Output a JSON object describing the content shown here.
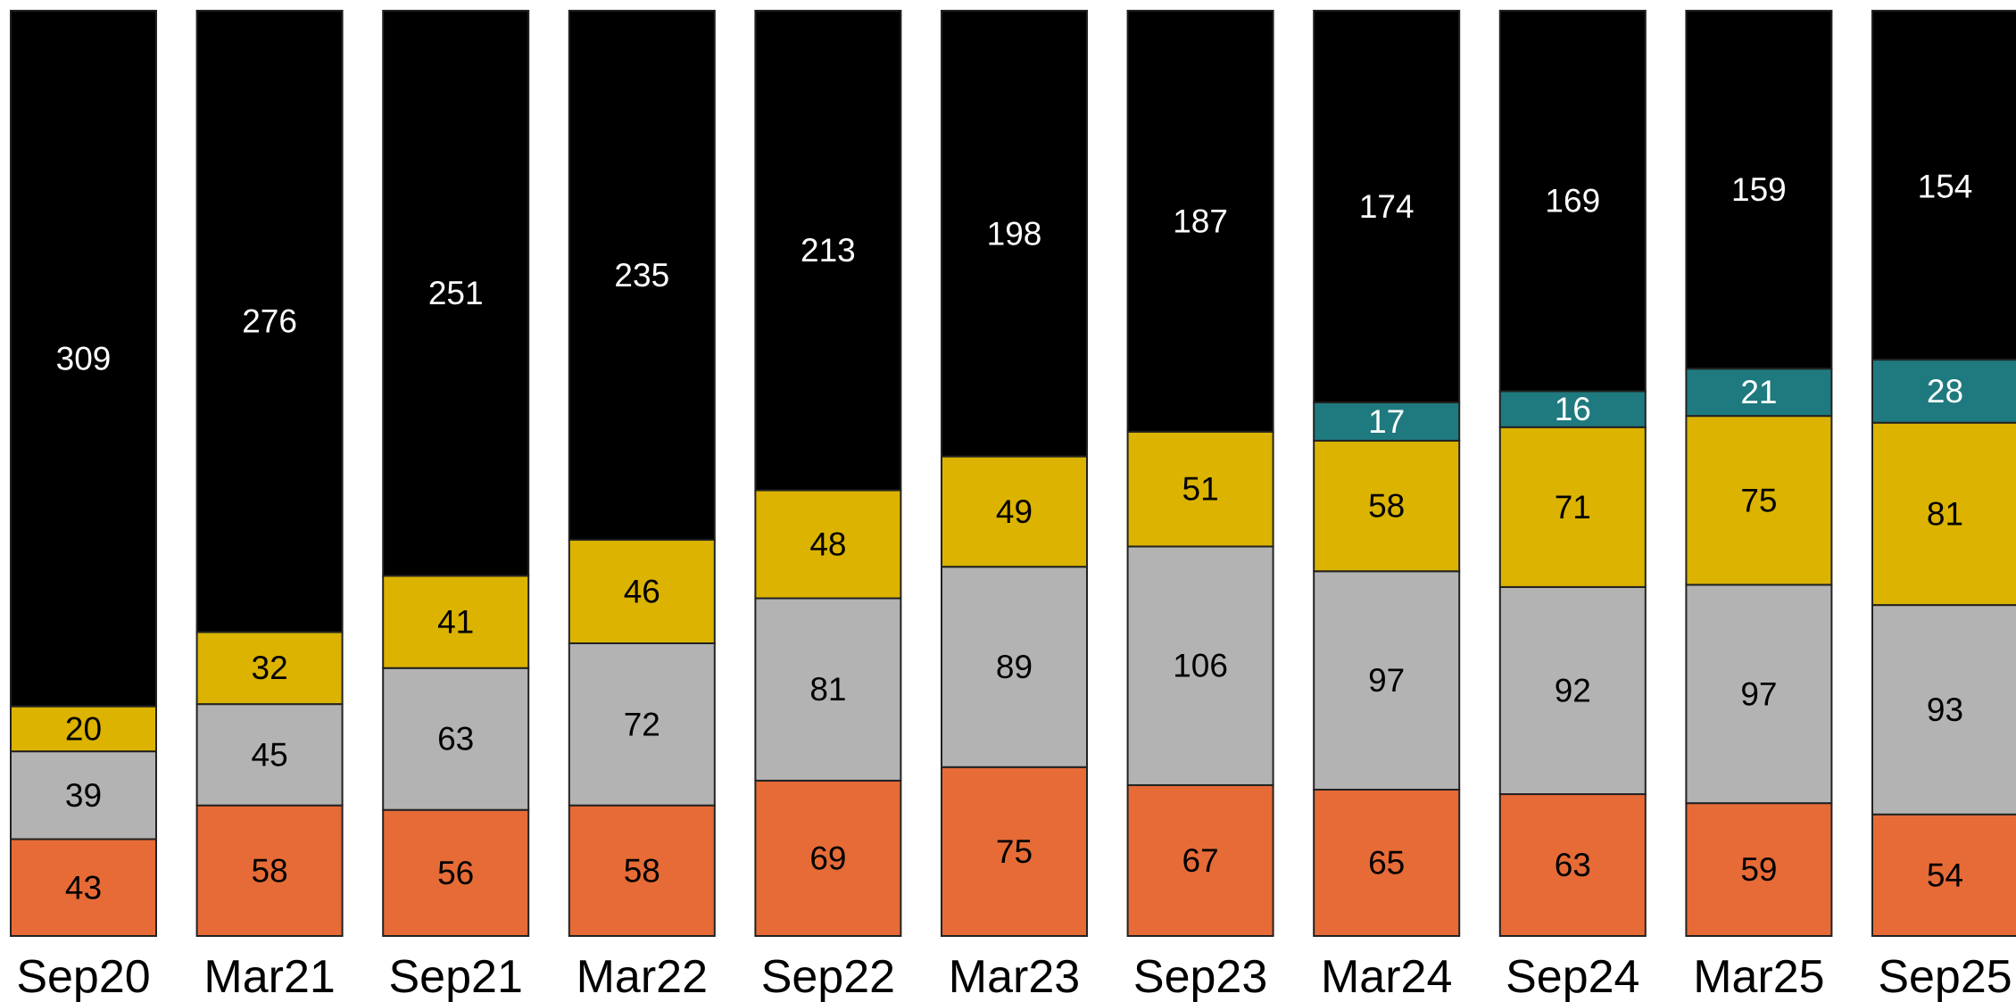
{
  "chart_data": {
    "type": "stacked-bar",
    "categories": [
      "Sep20",
      "Mar21",
      "Sep21",
      "Mar22",
      "Sep22",
      "Mar23",
      "Sep23",
      "Mar24",
      "Sep24",
      "Mar25",
      "Sep25"
    ],
    "series": [
      {
        "color": "#e66b37",
        "label_color": "#000000",
        "values": [
          43,
          58,
          56,
          58,
          69,
          75,
          67,
          65,
          63,
          59,
          54
        ]
      },
      {
        "color": "#b3b3b3",
        "label_color": "#000000",
        "values": [
          39,
          45,
          63,
          72,
          81,
          89,
          106,
          97,
          92,
          97,
          93
        ]
      },
      {
        "color": "#dbb300",
        "label_color": "#000000",
        "values": [
          20,
          32,
          41,
          46,
          48,
          49,
          51,
          58,
          71,
          75,
          81
        ]
      },
      {
        "color": "#1f7a7f",
        "label_color": "#ffffff",
        "values": [
          null,
          null,
          null,
          null,
          null,
          null,
          null,
          17,
          16,
          21,
          28
        ]
      },
      {
        "color": "#000000",
        "label_color": "#ffffff",
        "values": [
          309,
          276,
          251,
          235,
          213,
          198,
          187,
          174,
          169,
          159,
          154
        ]
      }
    ]
  }
}
